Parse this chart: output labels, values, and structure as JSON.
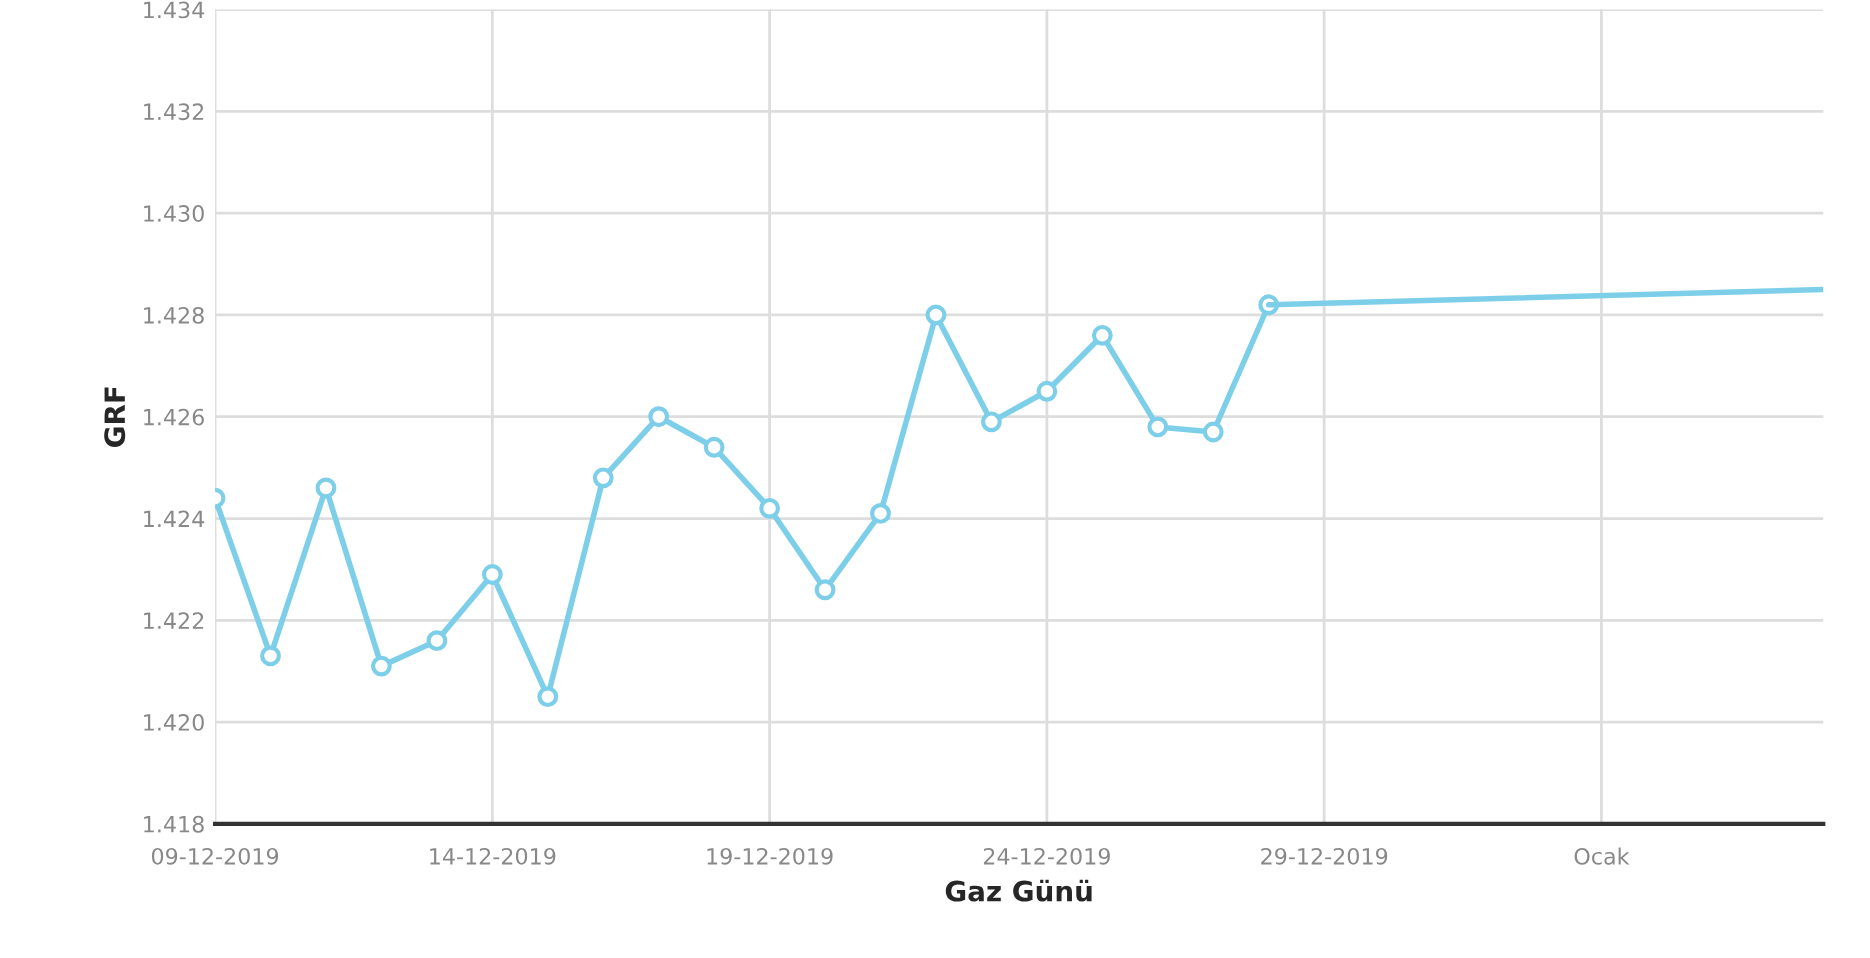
{
  "chart_data": {
    "type": "line",
    "xlabel": "Gaz Günü",
    "ylabel": "GRF",
    "series": [
      {
        "color": "#7dcfe9",
        "marker": "circle",
        "x": [
          "2019-12-09",
          "2019-12-10",
          "2019-12-11",
          "2019-12-12",
          "2019-12-13",
          "2019-12-14",
          "2019-12-15",
          "2019-12-16",
          "2019-12-17",
          "2019-12-18",
          "2019-12-19",
          "2019-12-20",
          "2019-12-21",
          "2019-12-22",
          "2019-12-23",
          "2019-12-24",
          "2019-12-25",
          "2019-12-26",
          "2019-12-27",
          "2019-12-28"
        ],
        "values": [
          1.4244,
          1.4213,
          1.4246,
          1.4211,
          1.4216,
          1.4229,
          1.4205,
          1.4248,
          1.426,
          1.4254,
          1.4242,
          1.4226,
          1.4241,
          1.428,
          1.4259,
          1.4265,
          1.4276,
          1.4258,
          1.4257,
          1.4282
        ]
      },
      {
        "color": "#7dcfe9",
        "marker": "none",
        "x": [
          "2019-12-28",
          "2020-01-07"
        ],
        "values": [
          1.4282,
          1.4285
        ]
      }
    ],
    "xlim": [
      "2019-12-09",
      "2020-01-07"
    ],
    "xticks": [
      {
        "value": "2019-12-09",
        "label": "09-12-2019"
      },
      {
        "value": "2019-12-14",
        "label": "14-12-2019"
      },
      {
        "value": "2019-12-19",
        "label": "19-12-2019"
      },
      {
        "value": "2019-12-24",
        "label": "24-12-2019"
      },
      {
        "value": "2019-12-29",
        "label": "29-12-2019"
      },
      {
        "value": "2020-01-03",
        "label": "Ocak"
      }
    ],
    "ylim": [
      1.418,
      1.434
    ],
    "yticks": [
      {
        "value": 1.418,
        "label": "1.418"
      },
      {
        "value": 1.42,
        "label": "1.420"
      },
      {
        "value": 1.422,
        "label": "1.422"
      },
      {
        "value": 1.424,
        "label": "1.424"
      },
      {
        "value": 1.426,
        "label": "1.426"
      },
      {
        "value": 1.428,
        "label": "1.428"
      },
      {
        "value": 1.43,
        "label": "1.430"
      },
      {
        "value": 1.432,
        "label": "1.432"
      },
      {
        "value": 1.434,
        "label": "1.434"
      }
    ],
    "grid": true
  }
}
